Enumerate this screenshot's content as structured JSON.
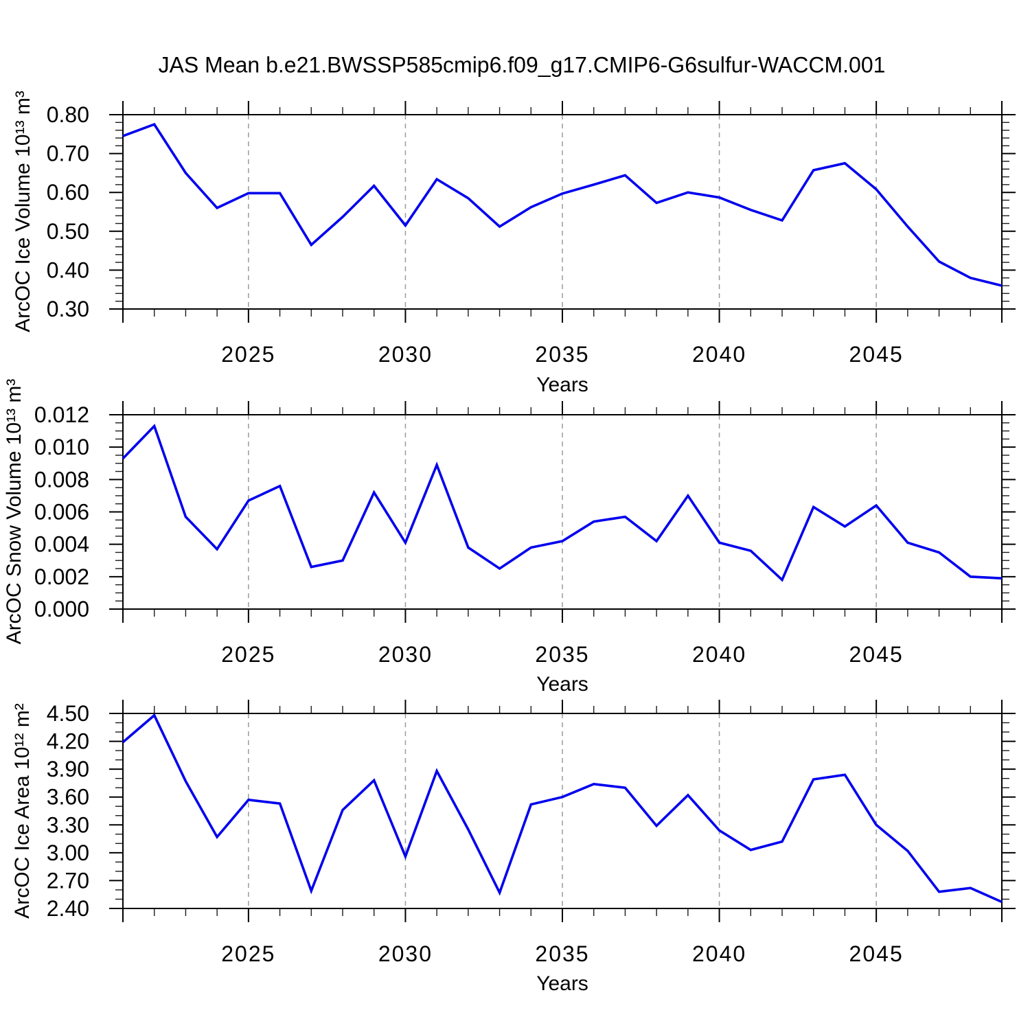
{
  "title": "JAS Mean b.e21.BWSSP585cmip6.f09_g17.CMIP6-G6sulfur-WACCM.001",
  "series_color": "#0000ee",
  "frame_color": "#000000",
  "grid_color": "#9a9a9a",
  "chart_data": [
    {
      "type": "line",
      "name": "arcoc_ice_volume",
      "ylabel": "ArcOC Ice Volume 10¹³ m³",
      "xlabel": "Years",
      "xlim": [
        2021,
        2049
      ],
      "ylim": [
        0.3,
        0.8
      ],
      "xticks": {
        "values": [
          2025,
          2030,
          2035,
          2040,
          2045
        ],
        "labels": [
          "2025",
          "2030",
          "2035",
          "2040",
          "2045"
        ]
      },
      "yticks": {
        "values": [
          0.3,
          0.4,
          0.5,
          0.6,
          0.7,
          0.8
        ],
        "labels": [
          "0.30",
          "0.40",
          "0.50",
          "0.60",
          "0.70",
          "0.80"
        ]
      },
      "y_minor_step": 0.02,
      "x_minor_step": 1,
      "grid": "vertical-dashed-at-major-xticks",
      "x": [
        2021,
        2022,
        2023,
        2024,
        2025,
        2026,
        2027,
        2028,
        2029,
        2030,
        2031,
        2032,
        2033,
        2034,
        2035,
        2036,
        2037,
        2038,
        2039,
        2040,
        2041,
        2042,
        2043,
        2044,
        2045,
        2046,
        2047,
        2048,
        2049
      ],
      "values": [
        0.745,
        0.775,
        0.65,
        0.56,
        0.598,
        0.598,
        0.465,
        0.537,
        0.617,
        0.515,
        0.634,
        0.585,
        0.512,
        0.562,
        0.597,
        0.62,
        0.644,
        0.573,
        0.6,
        0.587,
        0.555,
        0.528,
        0.657,
        0.675,
        0.608,
        0.512,
        0.422,
        0.38,
        0.36
      ]
    },
    {
      "type": "line",
      "name": "arcoc_snow_volume",
      "ylabel": "ArcOC Snow Volume 10¹³ m³",
      "xlabel": "Years",
      "xlim": [
        2021,
        2049
      ],
      "ylim": [
        0.0,
        0.012
      ],
      "xticks": {
        "values": [
          2025,
          2030,
          2035,
          2040,
          2045
        ],
        "labels": [
          "2025",
          "2030",
          "2035",
          "2040",
          "2045"
        ]
      },
      "yticks": {
        "values": [
          0.0,
          0.002,
          0.004,
          0.006,
          0.008,
          0.01,
          0.012
        ],
        "labels": [
          "0.000",
          "0.002",
          "0.004",
          "0.006",
          "0.008",
          "0.010",
          "0.012"
        ]
      },
      "y_minor_step": 0.0005,
      "x_minor_step": 1,
      "grid": "vertical-dashed-at-major-xticks",
      "x": [
        2021,
        2022,
        2023,
        2024,
        2025,
        2026,
        2027,
        2028,
        2029,
        2030,
        2031,
        2032,
        2033,
        2034,
        2035,
        2036,
        2037,
        2038,
        2039,
        2040,
        2041,
        2042,
        2043,
        2044,
        2045,
        2046,
        2047,
        2048,
        2049
      ],
      "values": [
        0.0093,
        0.0113,
        0.0057,
        0.0037,
        0.0067,
        0.0076,
        0.0026,
        0.003,
        0.0072,
        0.0041,
        0.0089,
        0.0038,
        0.0025,
        0.0038,
        0.0042,
        0.0054,
        0.0057,
        0.0042,
        0.007,
        0.0041,
        0.0036,
        0.0018,
        0.0063,
        0.0051,
        0.0064,
        0.0041,
        0.0035,
        0.002,
        0.0019
      ]
    },
    {
      "type": "line",
      "name": "arcoc_ice_area",
      "ylabel": "ArcOC Ice Area 10¹² m²",
      "xlabel": "Years",
      "xlim": [
        2021,
        2049
      ],
      "ylim": [
        2.4,
        4.5
      ],
      "xticks": {
        "values": [
          2025,
          2030,
          2035,
          2040,
          2045
        ],
        "labels": [
          "2025",
          "2030",
          "2035",
          "2040",
          "2045"
        ]
      },
      "yticks": {
        "values": [
          2.4,
          2.7,
          3.0,
          3.3,
          3.6,
          3.9,
          4.2,
          4.5
        ],
        "labels": [
          "2.40",
          "2.70",
          "3.00",
          "3.30",
          "3.60",
          "3.90",
          "4.20",
          "4.50"
        ]
      },
      "y_minor_step": 0.1,
      "x_minor_step": 1,
      "grid": "vertical-dashed-at-major-xticks",
      "x": [
        2021,
        2022,
        2023,
        2024,
        2025,
        2026,
        2027,
        2028,
        2029,
        2030,
        2031,
        2032,
        2033,
        2034,
        2035,
        2036,
        2037,
        2038,
        2039,
        2040,
        2041,
        2042,
        2043,
        2044,
        2045,
        2046,
        2047,
        2048,
        2049
      ],
      "values": [
        4.19,
        4.48,
        3.77,
        3.17,
        3.57,
        3.53,
        2.59,
        3.46,
        3.78,
        2.96,
        3.88,
        3.25,
        2.57,
        3.52,
        3.6,
        3.74,
        3.7,
        3.29,
        3.62,
        3.24,
        3.03,
        3.12,
        3.79,
        3.84,
        3.3,
        3.02,
        2.58,
        2.62,
        2.47
      ]
    }
  ]
}
